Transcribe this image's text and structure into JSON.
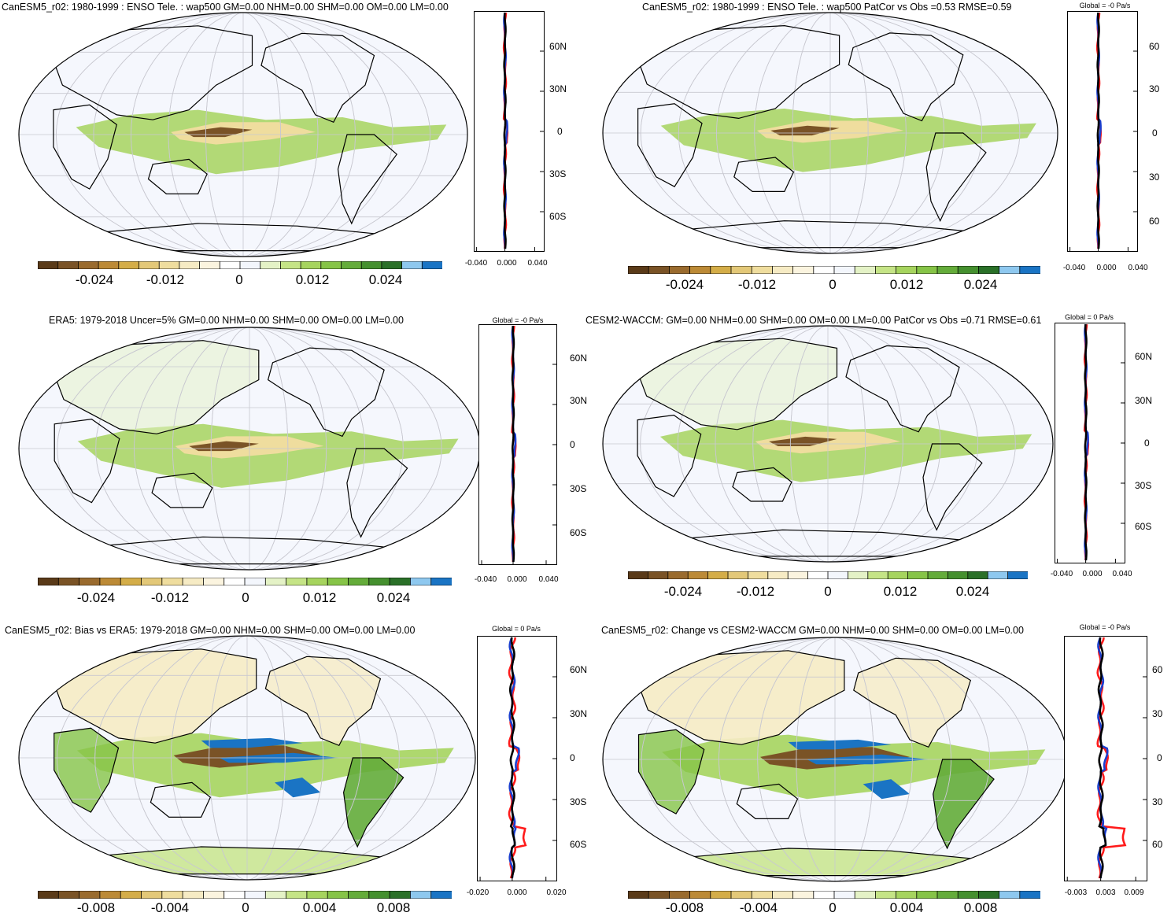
{
  "panels": [
    {
      "id": "p1",
      "title": "CanESM5_r02: 1980-1999 : ENSO Tele. : wap500 GM=0.00 NHM=0.00 SHM=0.00 OM=0.00 LM=0.00",
      "zonal_title": "",
      "lat_labels": [
        "60N",
        "30N",
        "0",
        "30S",
        "60S"
      ],
      "x_ticks": [
        "-0.040",
        "0.000",
        "0.040"
      ],
      "colorbar_labels": [
        "-0.024",
        "-0.012",
        "0",
        "0.012",
        "0.024"
      ]
    },
    {
      "id": "p2",
      "title": "CanESM5_r02: 1980-1999 : ENSO Tele. : wap500 PatCor vs Obs =0.53 RMSE=0.59",
      "zonal_title": "Global = -0 Pa/s",
      "lat_labels": [
        "60",
        "30",
        "0",
        "30",
        "60"
      ],
      "x_ticks": [
        "-0.040",
        "0.000",
        "0.040"
      ],
      "colorbar_labels": [
        "-0.024",
        "-0.012",
        "0",
        "0.012",
        "0.024"
      ]
    },
    {
      "id": "p3",
      "title": "ERA5: 1979-2018 Uncer=5% GM=0.00 NHM=0.00 SHM=0.00 OM=0.00 LM=0.00",
      "zonal_title": "Global = -0 Pa/s",
      "lat_labels": [
        "60N",
        "30N",
        "0",
        "30S",
        "60S"
      ],
      "x_ticks": [
        "-0.040",
        "0.000",
        "0.040"
      ],
      "colorbar_labels": [
        "-0.024",
        "-0.012",
        "0",
        "0.012",
        "0.024"
      ]
    },
    {
      "id": "p4",
      "title": "CESM2-WACCM: GM=0.00 NHM=0.00 SHM=0.00 OM=0.00 LM=0.00 PatCor vs Obs =0.71 RMSE=0.61",
      "zonal_title": "Global = 0 Pa/s",
      "lat_labels": [
        "60N",
        "30N",
        "0",
        "30S",
        "60S"
      ],
      "x_ticks": [
        "-0.040",
        "0.000",
        "0.040"
      ],
      "colorbar_labels": [
        "-0.024",
        "-0.012",
        "0",
        "0.012",
        "0.024"
      ]
    },
    {
      "id": "p5",
      "title": "CanESM5_r02: Bias vs ERA5: 1979-2018 GM=0.00 NHM=0.00 SHM=0.00 OM=0.00 LM=0.00",
      "zonal_title": "Global = 0 Pa/s",
      "lat_labels": [
        "60N",
        "30N",
        "0",
        "30S",
        "60S"
      ],
      "x_ticks": [
        "-0.020",
        "0.000",
        "0.020"
      ],
      "colorbar_labels": [
        "-0.008",
        "-0.004",
        "0",
        "0.004",
        "0.008"
      ]
    },
    {
      "id": "p6",
      "title": "CanESM5_r02: Change vs CESM2-WACCM GM=0.00 NHM=0.00 SHM=0.00 OM=0.00 LM=0.00",
      "zonal_title": "Global = -0 Pa/s",
      "lat_labels": [
        "60",
        "30",
        "0",
        "30",
        "60"
      ],
      "x_ticks": [
        "-0.003",
        "0.003",
        "0.009"
      ],
      "colorbar_labels": [
        "-0.008",
        "-0.004",
        "0",
        "0.004",
        "0.008"
      ]
    }
  ],
  "colorbar_colors": [
    "#5a3a18",
    "#7a5326",
    "#9a6b2e",
    "#bc8a36",
    "#d4ad48",
    "#e3c878",
    "#efdd9e",
    "#f6ebc4",
    "#fbf4df",
    "#ffffff",
    "#f3f6fc",
    "#e4f2c6",
    "#c5e486",
    "#a6d45e",
    "#86c447",
    "#64ac3a",
    "#45902f",
    "#2a7028",
    "#8ec8ef",
    "#1a74c4"
  ],
  "colors": {
    "ocean": "#f5f7fd",
    "coast": "#000000",
    "grid": "#c8c8d0",
    "line_black": "#000000",
    "line_red": "#ff1a1a",
    "line_blue": "#1a3fd0"
  }
}
